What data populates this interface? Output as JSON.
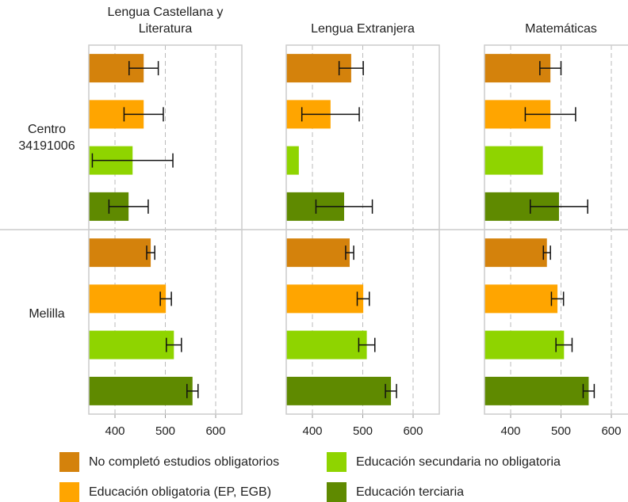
{
  "chart_data": {
    "type": "bar",
    "orientation": "horizontal",
    "groups": [
      "Centro 34191006",
      "Melilla"
    ],
    "series": [
      {
        "name": "No completó estudios obligatorios",
        "color": "#d4820c"
      },
      {
        "name": "Educación obligatoria (EP, EGB)",
        "color": "#ffa500"
      },
      {
        "name": "Educación secundaria no obligatoria",
        "color": "#8fd400"
      },
      {
        "name": "Educación terciaria",
        "color": "#5f8a00"
      }
    ],
    "panels": [
      {
        "title": "Lengua Castellana y Literatura",
        "series": [
          {
            "values": [
              457,
              471
            ],
            "errors": [
              29,
              8
            ]
          },
          {
            "values": [
              457,
              501
            ],
            "errors": [
              39,
              11
            ]
          },
          {
            "values": [
              435,
              517
            ],
            "errors": [
              80,
              15
            ]
          },
          {
            "values": [
              427,
              554
            ],
            "errors": [
              39,
              11
            ]
          }
        ]
      },
      {
        "title": "Lengua Extranjera",
        "series": [
          {
            "values": [
              477,
              474
            ],
            "errors": [
              24,
              8
            ]
          },
          {
            "values": [
              436,
              501
            ],
            "errors": [
              57,
              12
            ]
          },
          {
            "values": [
              373,
              508
            ],
            "errors": [
              null,
              16
            ]
          },
          {
            "values": [
              463,
              556
            ],
            "errors": [
              56,
              11
            ]
          }
        ]
      },
      {
        "title": "Matemáticas",
        "series": [
          {
            "values": [
              479,
              472
            ],
            "errors": [
              21,
              7
            ]
          },
          {
            "values": [
              479,
              493
            ],
            "errors": [
              50,
              12
            ]
          },
          {
            "values": [
              464,
              506
            ],
            "errors": [
              null,
              16
            ]
          },
          {
            "values": [
              496,
              555
            ],
            "errors": [
              57,
              11
            ]
          }
        ]
      }
    ],
    "xlim": [
      348,
      652
    ],
    "xticks": [
      400,
      500,
      600
    ],
    "grid": true
  }
}
